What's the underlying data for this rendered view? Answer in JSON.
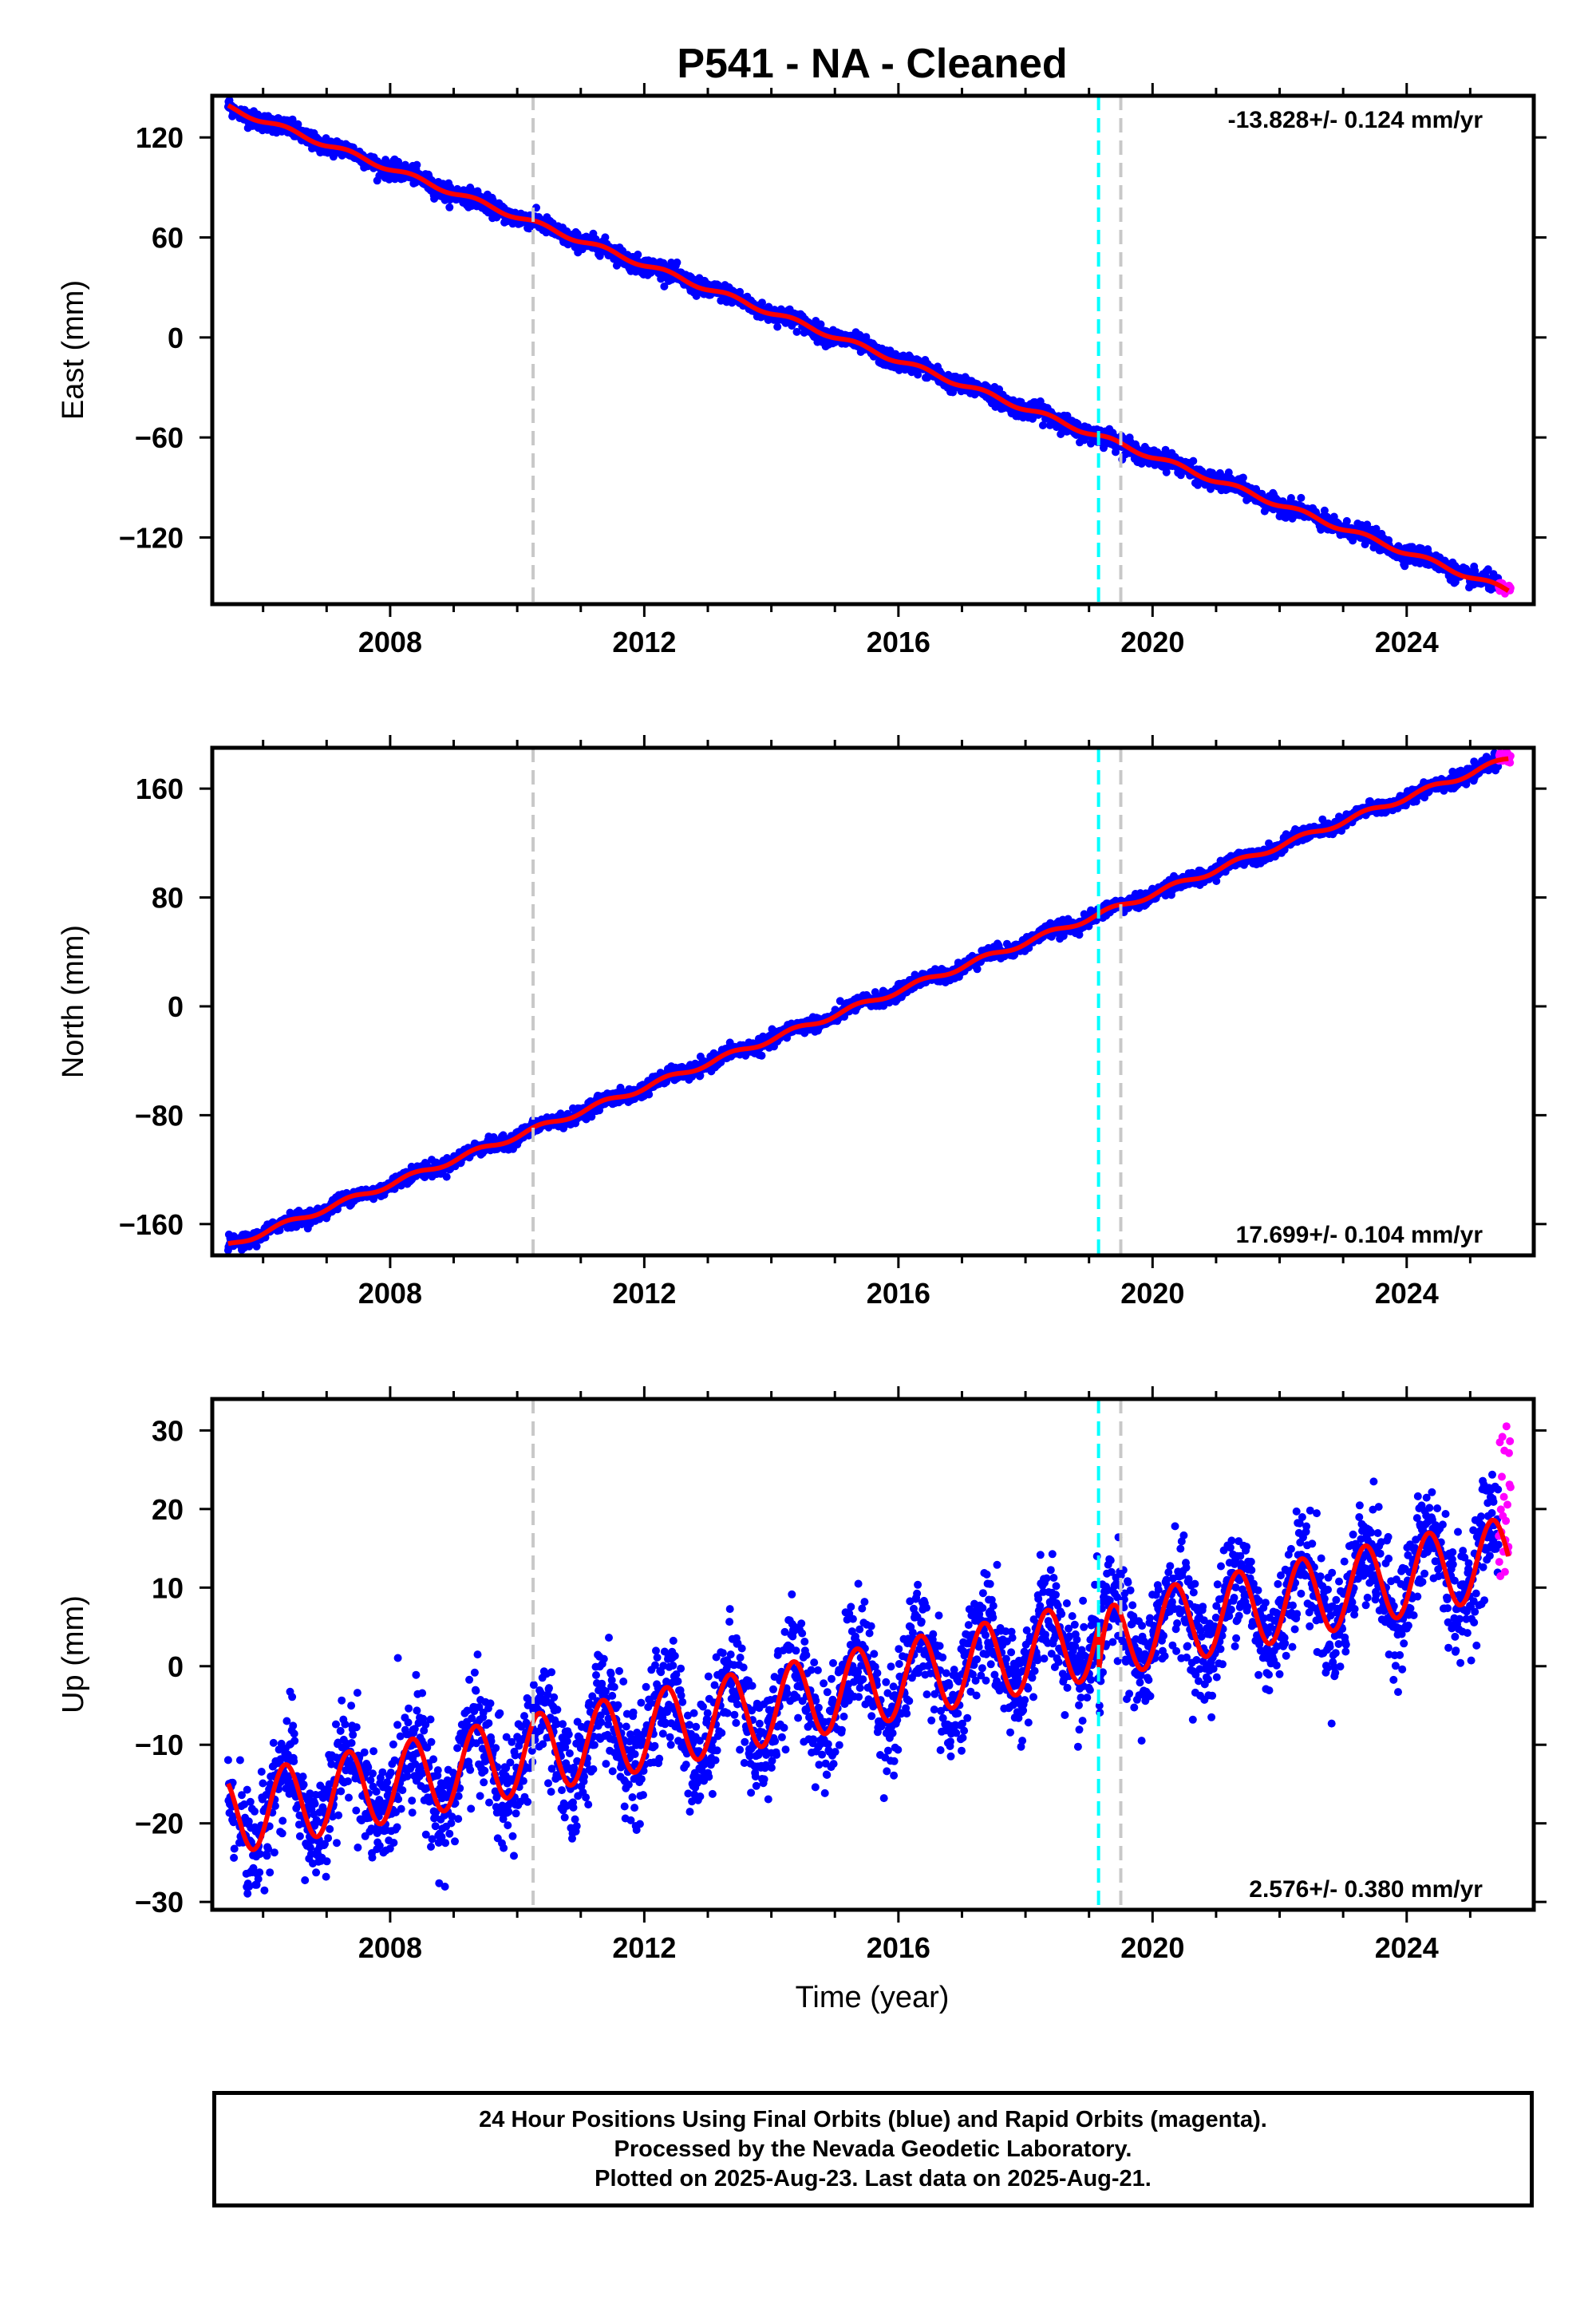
{
  "figure": {
    "title": "P541  - NA - Cleaned",
    "xlabel": "Time (year)",
    "caption": [
      "24 Hour Positions Using Final Orbits (blue) and Rapid Orbits (magenta).",
      "Processed by the Nevada Geodetic Laboratory.",
      "Plotted on 2025-Aug-23. Last data on 2025-Aug-21."
    ]
  },
  "colors": {
    "final_orbits": "#0000ff",
    "rapid_orbits": "#ff00ff",
    "model_fit": "#ff0000",
    "event_cyan": "#00ffff",
    "event_gray": "#c8c8c8",
    "frame": "#000000"
  },
  "chart_data": [
    {
      "type": "scatter",
      "panel": "east",
      "ylabel": "East (mm)",
      "rate_label": "-13.828+/- 0.124 mm/yr",
      "rate_position": "top-right",
      "xlim": [
        2005.2,
        2026.0
      ],
      "ylim": [
        -160,
        145
      ],
      "xticks": [
        2008,
        2012,
        2016,
        2020,
        2024
      ],
      "yticks": [
        -120,
        -60,
        0,
        60,
        120
      ],
      "vlines_gray": [
        2010.25,
        2019.5
      ],
      "vlines_cyan": [
        2019.15
      ],
      "trend": {
        "start_year": 2005.45,
        "start_value": 138,
        "end_year": 2025.6,
        "end_value": -152
      },
      "seasonal_amplitude": 1.5,
      "scatter_noise": 2.5,
      "step_at": 2019.15,
      "step_size": 0,
      "rapid_orbits": {
        "from_year": 2025.45,
        "to_year": 2025.64,
        "center": -151,
        "spread": 2
      },
      "series": [
        {
          "name": "Final Orbits (blue)",
          "kind": "points"
        },
        {
          "name": "Rapid Orbits (magenta)",
          "kind": "points"
        },
        {
          "name": "",
          "kind": "model"
        }
      ]
    },
    {
      "type": "scatter",
      "panel": "north",
      "ylabel": "North (mm)",
      "rate_label": "17.699+/- 0.104 mm/yr",
      "rate_position": "bottom-right",
      "xlim": [
        2005.2,
        2026.0
      ],
      "ylim": [
        -183,
        190
      ],
      "xticks": [
        2008,
        2012,
        2016,
        2020,
        2024
      ],
      "yticks": [
        -160,
        -80,
        0,
        80,
        160
      ],
      "vlines_gray": [
        2010.25,
        2019.5
      ],
      "vlines_cyan": [
        2019.15
      ],
      "trend": {
        "start_year": 2005.45,
        "start_value": -176,
        "end_year": 2025.6,
        "end_value": 182
      },
      "seasonal_amplitude": 2.0,
      "scatter_noise": 2.5,
      "step_at": 2019.15,
      "step_size": 0,
      "rapid_orbits": {
        "from_year": 2025.45,
        "to_year": 2025.64,
        "center": 182,
        "spread": 2
      },
      "series": [
        {
          "name": "Final Orbits (blue)",
          "kind": "points"
        },
        {
          "name": "Rapid Orbits (magenta)",
          "kind": "points"
        },
        {
          "name": "",
          "kind": "model"
        }
      ]
    },
    {
      "type": "scatter",
      "panel": "up",
      "ylabel": "Up (mm)",
      "rate_label": "2.576+/- 0.380 mm/yr",
      "rate_position": "bottom-right",
      "xlim": [
        2005.2,
        2026.0
      ],
      "ylim": [
        -31,
        34
      ],
      "xticks": [
        2008,
        2012,
        2016,
        2020,
        2024
      ],
      "yticks": [
        -30,
        -20,
        -10,
        0,
        10,
        20,
        30
      ],
      "vlines_gray": [
        2010.25,
        2019.5
      ],
      "vlines_cyan": [
        2019.15
      ],
      "trend": {
        "start_year": 2005.45,
        "start_value": -19,
        "end_year": 2025.6,
        "end_value": 14
      },
      "seasonal_amplitude": 5.0,
      "scatter_noise": 3.5,
      "step_at": 2019.15,
      "step_size": -6,
      "rapid_orbits": {
        "from_year": 2025.45,
        "to_year": 2025.64,
        "center": 21,
        "spread": 6
      },
      "series": [
        {
          "name": "Final Orbits (blue)",
          "kind": "points"
        },
        {
          "name": "Rapid Orbits (magenta)",
          "kind": "points"
        },
        {
          "name": "",
          "kind": "model"
        }
      ]
    }
  ]
}
